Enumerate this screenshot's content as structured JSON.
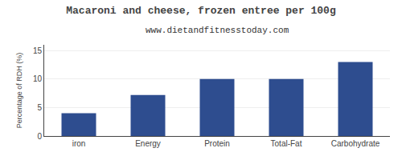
{
  "chart_data": {
    "type": "bar",
    "title": "Macaroni and cheese, frozen entree per 100g",
    "subtitle": "www.dietandfitnesstoday.com",
    "categories": [
      "iron",
      "Energy",
      "Protein",
      "Total-Fat",
      "Carbohydrate"
    ],
    "values": [
      4.0,
      7.2,
      10.0,
      10.0,
      13.0
    ],
    "color": "#2e4d8f",
    "ylabel": "Percentage of RDH (%)",
    "ylim": [
      0,
      16
    ],
    "yticks": [
      0,
      5,
      10,
      15
    ],
    "grid": true
  }
}
